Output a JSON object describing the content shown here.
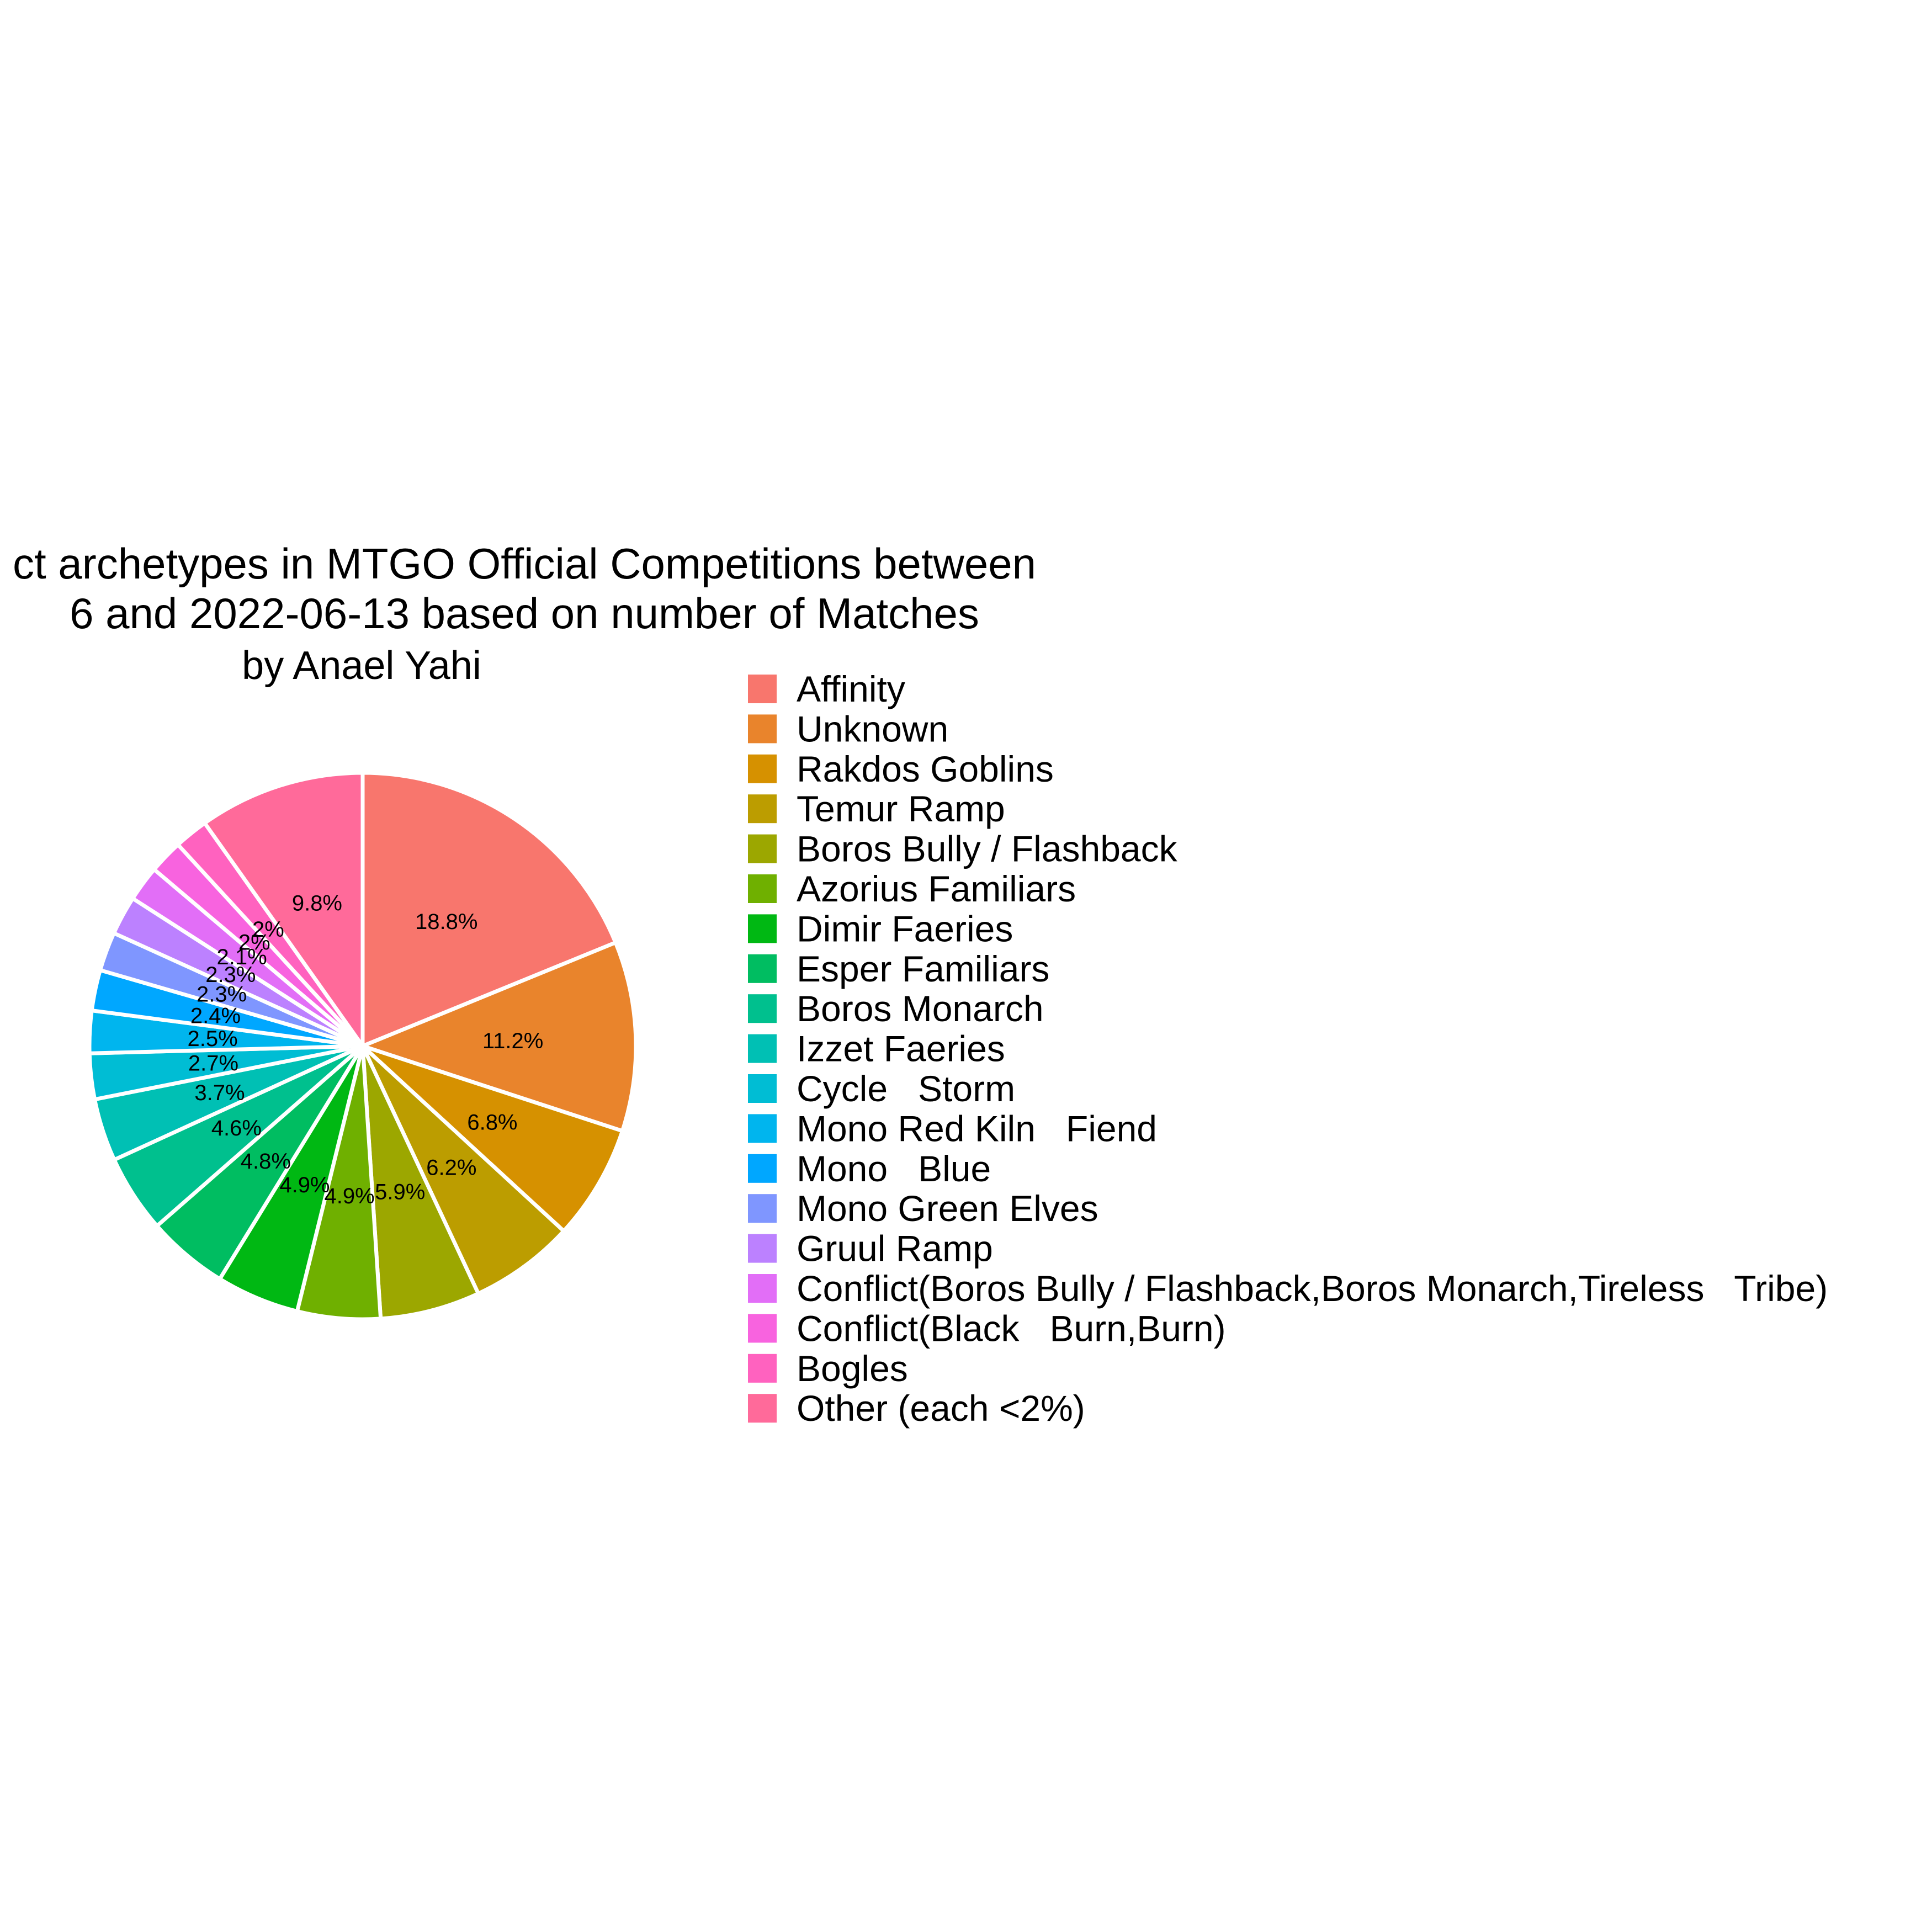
{
  "chart_data": {
    "type": "pie",
    "title_lines": [
      "ct archetypes in MTGO Official Competitions between",
      "6 and 2022-06-13 based on number of Matches"
    ],
    "subtitle": "by Anael Yahi",
    "legend_placement": "right",
    "slices": [
      {
        "label": "Affinity",
        "value": 18.8,
        "display": "18.8%",
        "color": "#F8766D"
      },
      {
        "label": "Unknown",
        "value": 11.2,
        "display": "11.2%",
        "color": "#E9842C"
      },
      {
        "label": "Rakdos Goblins",
        "value": 6.8,
        "display": "6.8%",
        "color": "#D69100"
      },
      {
        "label": "Temur Ramp",
        "value": 6.2,
        "display": "6.2%",
        "color": "#BC9D00"
      },
      {
        "label": "Boros Bully / Flashback",
        "value": 5.9,
        "display": "5.9%",
        "color": "#9CA700"
      },
      {
        "label": "Azorius Familiars",
        "value": 4.9,
        "display": "4.9%",
        "color": "#6FB000"
      },
      {
        "label": "Dimir Faeries",
        "value": 4.9,
        "display": "4.9%",
        "color": "#00B813"
      },
      {
        "label": "Esper Familiars",
        "value": 4.8,
        "display": "4.8%",
        "color": "#00BD61"
      },
      {
        "label": "Boros Monarch",
        "value": 4.6,
        "display": "4.6%",
        "color": "#00C08E"
      },
      {
        "label": "Izzet Faeries",
        "value": 3.7,
        "display": "3.7%",
        "color": "#00C0B4"
      },
      {
        "label": "Cycle   Storm",
        "value": 2.7,
        "display": "2.7%",
        "color": "#00BDD4"
      },
      {
        "label": "Mono Red Kiln   Fiend",
        "value": 2.5,
        "display": "2.5%",
        "color": "#00B5EE"
      },
      {
        "label": "Mono   Blue",
        "value": 2.4,
        "display": "2.4%",
        "color": "#00A7FF"
      },
      {
        "label": "Mono Green Elves",
        "value": 2.3,
        "display": "2.3%",
        "color": "#7F96FF"
      },
      {
        "label": "Gruul Ramp",
        "value": 2.3,
        "display": "2.3%",
        "color": "#BC81FF"
      },
      {
        "label": "Conflict(Boros Bully / Flashback,Boros Monarch,Tireless   Tribe)",
        "value": 2.1,
        "display": "2.1%",
        "color": "#E26EF7"
      },
      {
        "label": "Conflict(Black   Burn,Burn)",
        "value": 2.0,
        "display": "2%",
        "color": "#F863DF"
      },
      {
        "label": "Bogles",
        "value": 2.0,
        "display": "2%",
        "color": "#FF62BF"
      },
      {
        "label": "Other (each <2%)",
        "value": 9.8,
        "display": "9.8%",
        "color": "#FF6A9A"
      }
    ]
  }
}
